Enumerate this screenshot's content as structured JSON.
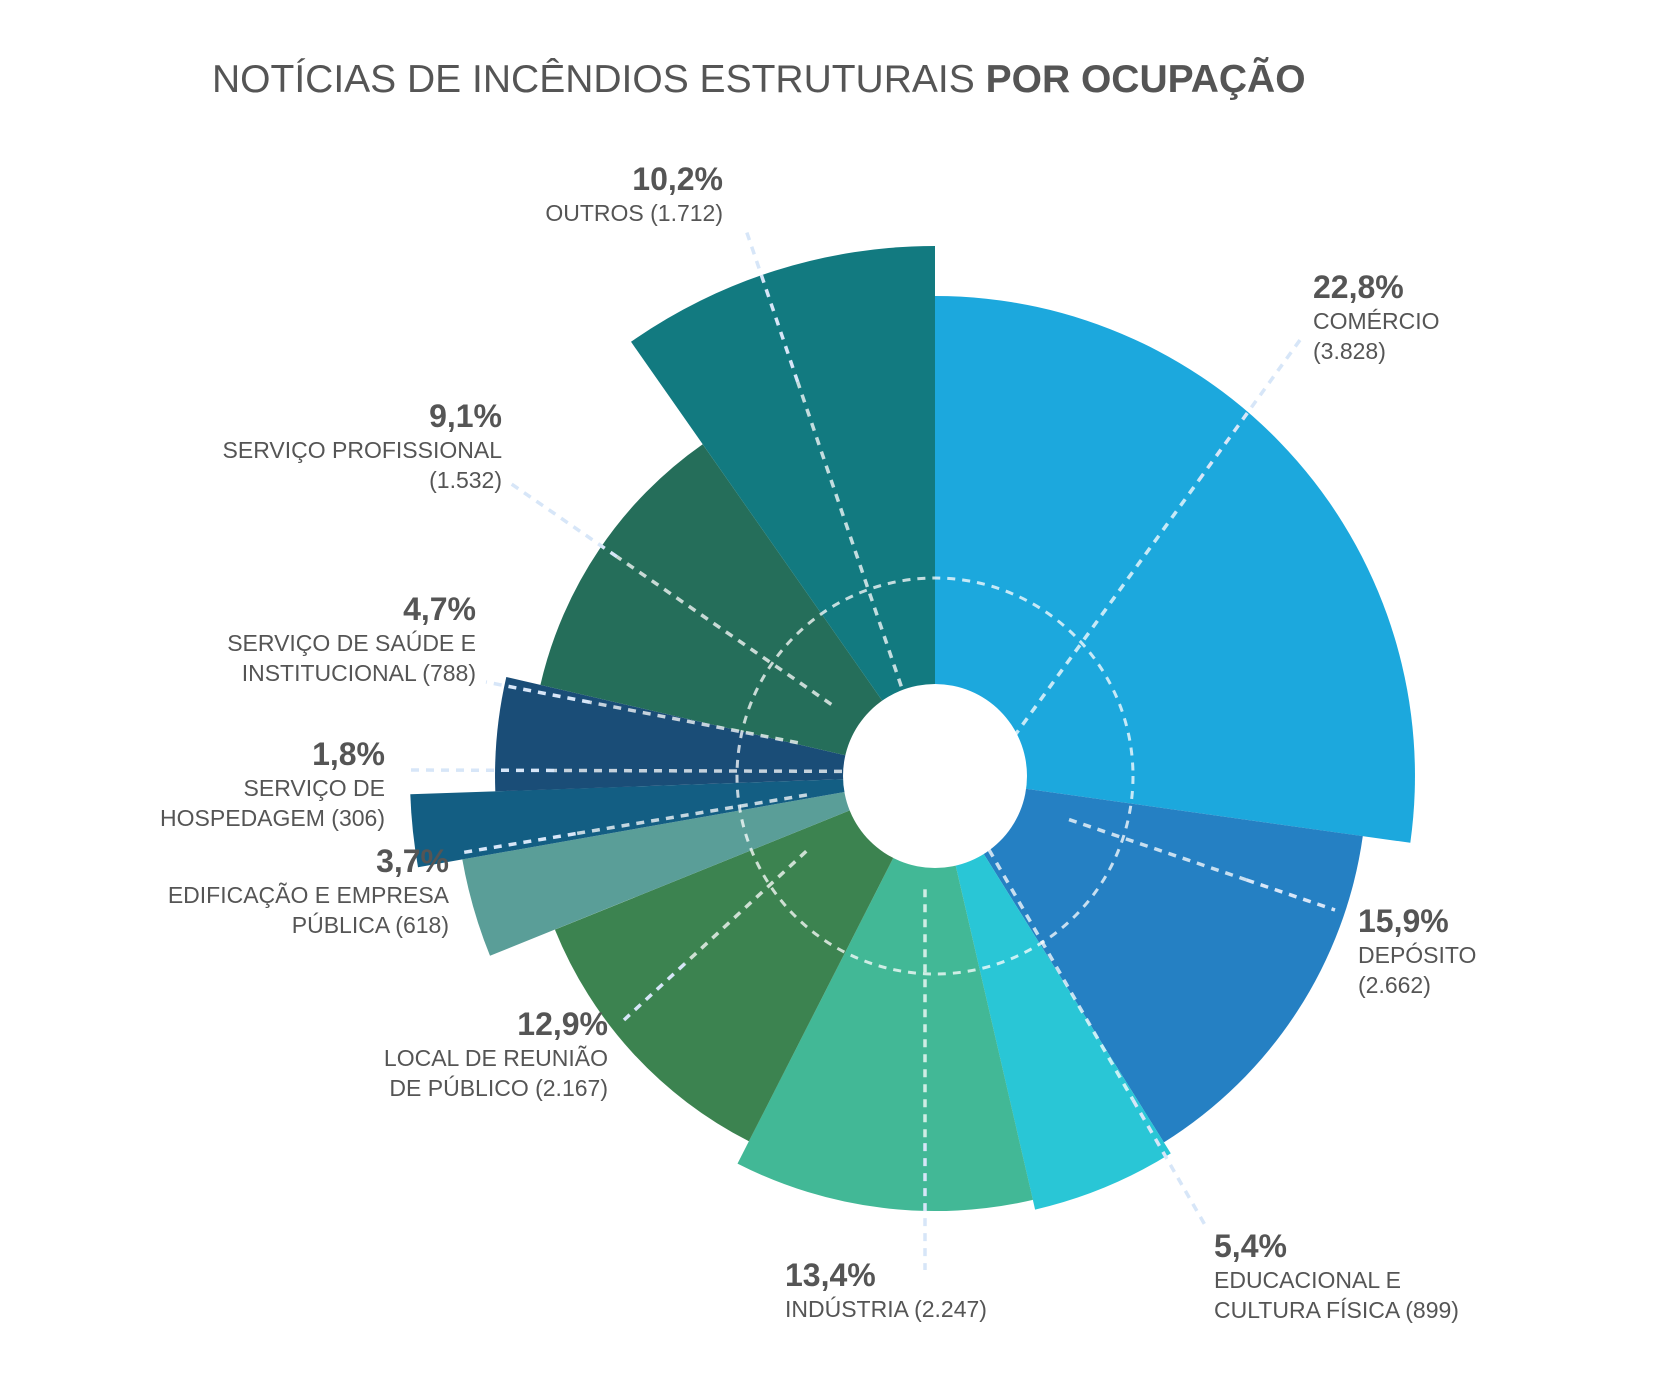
{
  "title": {
    "regular": "NOTÍCIAS DE INCÊNDIOS ESTRUTURAIS",
    "bold": "POR OCUPAÇÃO"
  },
  "chart_data": {
    "type": "polar-area",
    "unit": "%",
    "categories": [
      {
        "name": "COMÉRCIO",
        "count": "3.828",
        "percent": 22.8,
        "percent_label": "22,8%",
        "label_lines": [
          "COMÉRCIO",
          "(3.828)"
        ],
        "color": "#1ca8dd"
      },
      {
        "name": "DEPÓSITO",
        "count": "2.662",
        "percent": 15.9,
        "percent_label": "15,9%",
        "label_lines": [
          "DEPÓSITO",
          "(2.662)"
        ],
        "color": "#2580c3"
      },
      {
        "name": "EDUCACIONAL E CULTURA FÍSICA",
        "count": "899",
        "percent": 5.4,
        "percent_label": "5,4%",
        "label_lines": [
          "EDUCACIONAL E",
          "CULTURA FÍSICA (899)"
        ],
        "color": "#29c6d6"
      },
      {
        "name": "INDÚSTRIA",
        "count": "2.247",
        "percent": 13.4,
        "percent_label": "13,4%",
        "label_lines": [
          "INDÚSTRIA (2.247)"
        ],
        "color": "#42b896"
      },
      {
        "name": "LOCAL DE REUNIÃO DE PÚBLICO",
        "count": "2.167",
        "percent": 12.9,
        "percent_label": "12,9%",
        "label_lines": [
          "LOCAL DE REUNIÃO",
          "DE PÚBLICO (2.167)"
        ],
        "color": "#3c8350"
      },
      {
        "name": "EDIFICAÇÃO E EMPRESA PÚBLICA",
        "count": "618",
        "percent": 3.7,
        "percent_label": "3,7%",
        "label_lines": [
          "EDIFICAÇÃO E EMPRESA",
          "PÚBLICA (618)"
        ],
        "color": "#5a9e98"
      },
      {
        "name": "SERVIÇO DE HOSPEDAGEM",
        "count": "306",
        "percent": 1.8,
        "percent_label": "1,8%",
        "label_lines": [
          "SERVIÇO DE",
          "HOSPEDAGEM (306)"
        ],
        "color": "#135e83"
      },
      {
        "name": "SERVIÇO DE SAÚDE E INSTITUCIONAL",
        "count": "788",
        "percent": 4.7,
        "percent_label": "4,7%",
        "label_lines": [
          "SERVIÇO DE SAÚDE E",
          "INSTITUCIONAL (788)"
        ],
        "color": "#1a4d77"
      },
      {
        "name": "SERVIÇO PROFISSIONAL",
        "count": "1.532",
        "percent": 9.1,
        "percent_label": "9,1%",
        "label_lines": [
          "SERVIÇO PROFISSIONAL",
          "(1.532)"
        ],
        "color": "#256e5a"
      },
      {
        "name": "OUTROS",
        "count": "1.712",
        "percent": 10.2,
        "percent_label": "10,2%",
        "label_lines": [
          "OUTROS (1.712)"
        ],
        "color": "#127a80"
      }
    ]
  }
}
